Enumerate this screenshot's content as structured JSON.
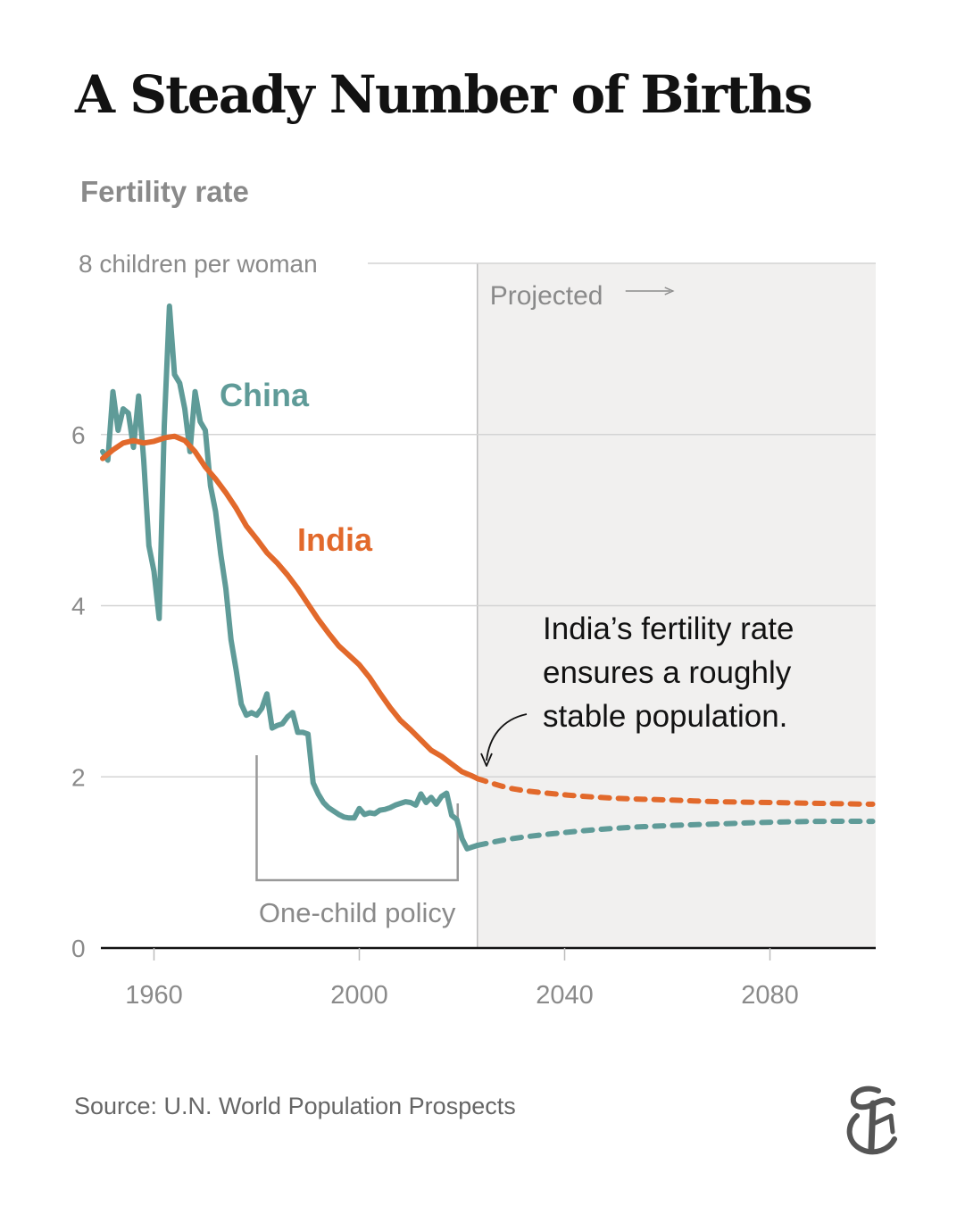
{
  "title": "A Steady Number of Births",
  "subtitle": "Fertility rate",
  "source": "Source: U.N. World Population Prospects",
  "colors": {
    "china": "#5f9b98",
    "india": "#e2692b",
    "projected_bg": "#f1f0ef",
    "grid": "#d4d4d4",
    "axis": "#121212",
    "muted_text": "#8a8a8a"
  },
  "chart_data": {
    "type": "line",
    "title": "A Steady Number of Births",
    "subtitle": "Fertility rate",
    "ylabel": "children per woman",
    "ylim": [
      0,
      8
    ],
    "xlim": [
      1950,
      2100
    ],
    "y_ticks": [
      {
        "value": 0,
        "label": "0"
      },
      {
        "value": 2,
        "label": "2"
      },
      {
        "value": 4,
        "label": "4"
      },
      {
        "value": 6,
        "label": "6"
      },
      {
        "value": 8,
        "label": "8 children per woman"
      }
    ],
    "x_ticks": [
      {
        "value": 1960,
        "label": "1960"
      },
      {
        "value": 2000,
        "label": "2000"
      },
      {
        "value": 2040,
        "label": "2040"
      },
      {
        "value": 2080,
        "label": "2080"
      }
    ],
    "projection_start": 2023,
    "projected_label": "Projected",
    "series": [
      {
        "name": "China",
        "label": "China",
        "observed": [
          [
            1950,
            5.8
          ],
          [
            1951,
            5.7
          ],
          [
            1952,
            6.5
          ],
          [
            1953,
            6.05
          ],
          [
            1954,
            6.3
          ],
          [
            1955,
            6.25
          ],
          [
            1956,
            5.85
          ],
          [
            1957,
            6.45
          ],
          [
            1958,
            5.7
          ],
          [
            1959,
            4.7
          ],
          [
            1960,
            4.4
          ],
          [
            1961,
            3.85
          ],
          [
            1962,
            6.1
          ],
          [
            1963,
            7.5
          ],
          [
            1964,
            6.7
          ],
          [
            1965,
            6.6
          ],
          [
            1966,
            6.3
          ],
          [
            1967,
            5.8
          ],
          [
            1968,
            6.5
          ],
          [
            1969,
            6.15
          ],
          [
            1970,
            6.05
          ],
          [
            1971,
            5.4
          ],
          [
            1972,
            5.1
          ],
          [
            1973,
            4.6
          ],
          [
            1974,
            4.2
          ],
          [
            1975,
            3.6
          ],
          [
            1976,
            3.25
          ],
          [
            1977,
            2.85
          ],
          [
            1978,
            2.72
          ],
          [
            1979,
            2.75
          ],
          [
            1980,
            2.72
          ],
          [
            1981,
            2.8
          ],
          [
            1982,
            2.97
          ],
          [
            1983,
            2.57
          ],
          [
            1984,
            2.6
          ],
          [
            1985,
            2.62
          ],
          [
            1986,
            2.7
          ],
          [
            1987,
            2.75
          ],
          [
            1988,
            2.52
          ],
          [
            1989,
            2.52
          ],
          [
            1990,
            2.5
          ],
          [
            1991,
            1.93
          ],
          [
            1992,
            1.8
          ],
          [
            1993,
            1.7
          ],
          [
            1994,
            1.64
          ],
          [
            1995,
            1.6
          ],
          [
            1996,
            1.56
          ],
          [
            1997,
            1.53
          ],
          [
            1998,
            1.52
          ],
          [
            1999,
            1.52
          ],
          [
            2000,
            1.63
          ],
          [
            2001,
            1.56
          ],
          [
            2002,
            1.58
          ],
          [
            2003,
            1.57
          ],
          [
            2004,
            1.61
          ],
          [
            2005,
            1.62
          ],
          [
            2006,
            1.64
          ],
          [
            2007,
            1.67
          ],
          [
            2008,
            1.69
          ],
          [
            2009,
            1.71
          ],
          [
            2010,
            1.7
          ],
          [
            2011,
            1.67
          ],
          [
            2012,
            1.8
          ],
          [
            2013,
            1.7
          ],
          [
            2014,
            1.76
          ],
          [
            2015,
            1.68
          ],
          [
            2016,
            1.77
          ],
          [
            2017,
            1.81
          ],
          [
            2018,
            1.55
          ],
          [
            2019,
            1.5
          ],
          [
            2020,
            1.28
          ],
          [
            2021,
            1.16
          ],
          [
            2022,
            1.18
          ],
          [
            2023,
            1.2
          ]
        ],
        "projected": [
          [
            2023,
            1.2
          ],
          [
            2030,
            1.28
          ],
          [
            2040,
            1.35
          ],
          [
            2050,
            1.4
          ],
          [
            2060,
            1.43
          ],
          [
            2070,
            1.45
          ],
          [
            2080,
            1.47
          ],
          [
            2090,
            1.48
          ],
          [
            2100,
            1.48
          ]
        ]
      },
      {
        "name": "India",
        "label": "India",
        "observed": [
          [
            1950,
            5.72
          ],
          [
            1952,
            5.82
          ],
          [
            1954,
            5.9
          ],
          [
            1956,
            5.93
          ],
          [
            1958,
            5.9
          ],
          [
            1960,
            5.92
          ],
          [
            1962,
            5.96
          ],
          [
            1964,
            5.98
          ],
          [
            1966,
            5.93
          ],
          [
            1968,
            5.8
          ],
          [
            1970,
            5.62
          ],
          [
            1972,
            5.48
          ],
          [
            1974,
            5.32
          ],
          [
            1976,
            5.14
          ],
          [
            1978,
            4.93
          ],
          [
            1980,
            4.78
          ],
          [
            1982,
            4.62
          ],
          [
            1984,
            4.5
          ],
          [
            1986,
            4.36
          ],
          [
            1988,
            4.2
          ],
          [
            1990,
            4.02
          ],
          [
            1992,
            3.84
          ],
          [
            1994,
            3.68
          ],
          [
            1996,
            3.53
          ],
          [
            1998,
            3.42
          ],
          [
            2000,
            3.31
          ],
          [
            2002,
            3.16
          ],
          [
            2004,
            2.98
          ],
          [
            2006,
            2.81
          ],
          [
            2008,
            2.66
          ],
          [
            2010,
            2.55
          ],
          [
            2012,
            2.43
          ],
          [
            2014,
            2.31
          ],
          [
            2016,
            2.24
          ],
          [
            2018,
            2.15
          ],
          [
            2020,
            2.06
          ],
          [
            2022,
            2.01
          ],
          [
            2023,
            1.98
          ]
        ],
        "projected": [
          [
            2023,
            1.98
          ],
          [
            2030,
            1.86
          ],
          [
            2040,
            1.79
          ],
          [
            2050,
            1.75
          ],
          [
            2060,
            1.73
          ],
          [
            2070,
            1.71
          ],
          [
            2080,
            1.7
          ],
          [
            2090,
            1.69
          ],
          [
            2100,
            1.68
          ]
        ]
      }
    ],
    "annotations": [
      {
        "id": "one-child-policy",
        "text": "One-child policy",
        "from_year": 1980,
        "to_year": 2015
      },
      {
        "id": "india-note",
        "lines": [
          "India’s fertility rate",
          "ensures a roughly",
          "stable population."
        ]
      }
    ]
  }
}
